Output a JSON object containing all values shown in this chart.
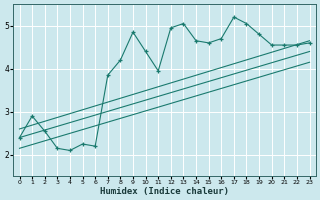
{
  "title": "",
  "xlabel": "Humidex (Indice chaleur)",
  "bg_color": "#cce8ed",
  "line_color": "#1a7a6e",
  "grid_color": "#ffffff",
  "xlim": [
    -0.5,
    23.5
  ],
  "ylim": [
    1.5,
    5.5
  ],
  "xticks": [
    0,
    1,
    2,
    3,
    4,
    5,
    6,
    7,
    8,
    9,
    10,
    11,
    12,
    13,
    14,
    15,
    16,
    17,
    18,
    19,
    20,
    21,
    22,
    23
  ],
  "yticks": [
    2,
    3,
    4,
    5
  ],
  "line1_x": [
    0,
    1,
    2,
    3,
    4,
    5,
    6,
    7,
    8,
    9,
    10,
    11,
    12,
    13,
    14,
    15,
    16,
    17,
    18,
    19,
    20,
    21,
    22,
    23
  ],
  "line1_y": [
    2.4,
    2.9,
    2.55,
    2.15,
    2.1,
    2.25,
    2.2,
    3.85,
    4.2,
    4.85,
    4.4,
    3.95,
    4.95,
    5.05,
    4.65,
    4.6,
    4.7,
    5.2,
    5.05,
    4.8,
    4.55,
    4.55,
    4.55,
    4.6
  ],
  "line2_x": [
    0,
    23
  ],
  "line2_y": [
    2.6,
    4.65
  ],
  "line3_x": [
    0,
    23
  ],
  "line3_y": [
    2.4,
    4.4
  ],
  "line4_x": [
    0,
    23
  ],
  "line4_y": [
    2.15,
    4.15
  ]
}
